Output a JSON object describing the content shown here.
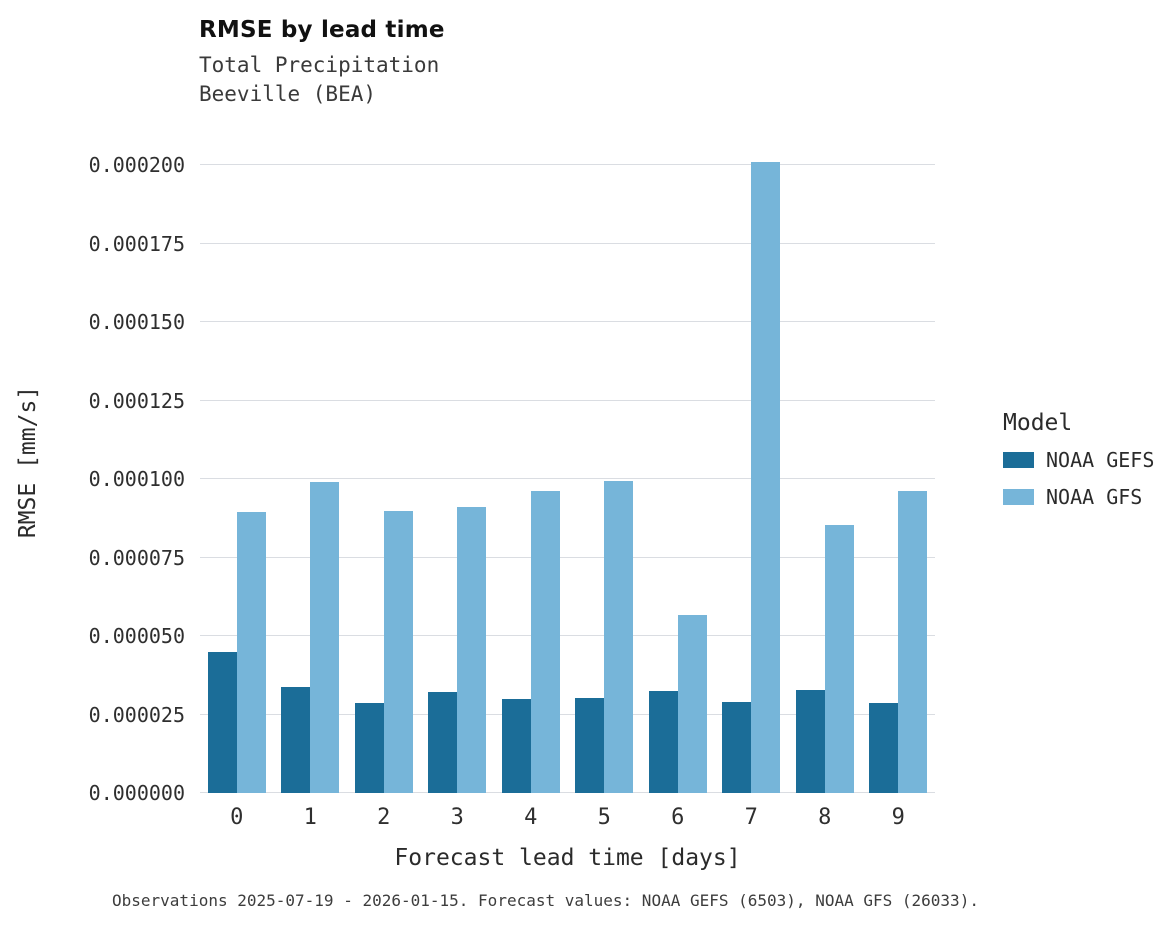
{
  "title": "RMSE by lead time",
  "subtitle_lines": [
    "Total Precipitation",
    "Beeville (BEA)"
  ],
  "footer": "Observations 2025-07-19 - 2026-01-15. Forecast values: NOAA GEFS (6503), NOAA GFS (26033).",
  "legend": {
    "title": "Model",
    "entries": [
      {
        "label": "NOAA GEFS",
        "color": "#1b6d98"
      },
      {
        "label": "NOAA GFS",
        "color": "#76b5d9"
      }
    ]
  },
  "chart_data": {
    "type": "bar",
    "title": "RMSE by lead time",
    "subtitle": "Total Precipitation — Beeville (BEA)",
    "xlabel": "Forecast lead time [days]",
    "ylabel": "RMSE [mm/s]",
    "categories": [
      "0",
      "1",
      "2",
      "3",
      "4",
      "5",
      "6",
      "7",
      "8",
      "9"
    ],
    "series": [
      {
        "name": "NOAA GEFS",
        "color": "#1b6d98",
        "values": [
          4.5e-05,
          3.38e-05,
          2.87e-05,
          3.22e-05,
          3e-05,
          3.03e-05,
          3.25e-05,
          2.9e-05,
          3.28e-05,
          2.87e-05
        ]
      },
      {
        "name": "NOAA GFS",
        "color": "#76b5d9",
        "values": [
          8.95e-05,
          9.9e-05,
          8.98e-05,
          9.1e-05,
          9.62e-05,
          9.94e-05,
          5.67e-05,
          0.000201,
          8.54e-05,
          9.62e-05
        ]
      }
    ],
    "ylim": [
      0,
      0.0002
    ],
    "yticks": [
      0,
      2.5e-05,
      5e-05,
      7.5e-05,
      0.0001,
      0.000125,
      0.00015,
      0.000175,
      0.0002
    ],
    "grid": true,
    "legend_position": "right"
  }
}
